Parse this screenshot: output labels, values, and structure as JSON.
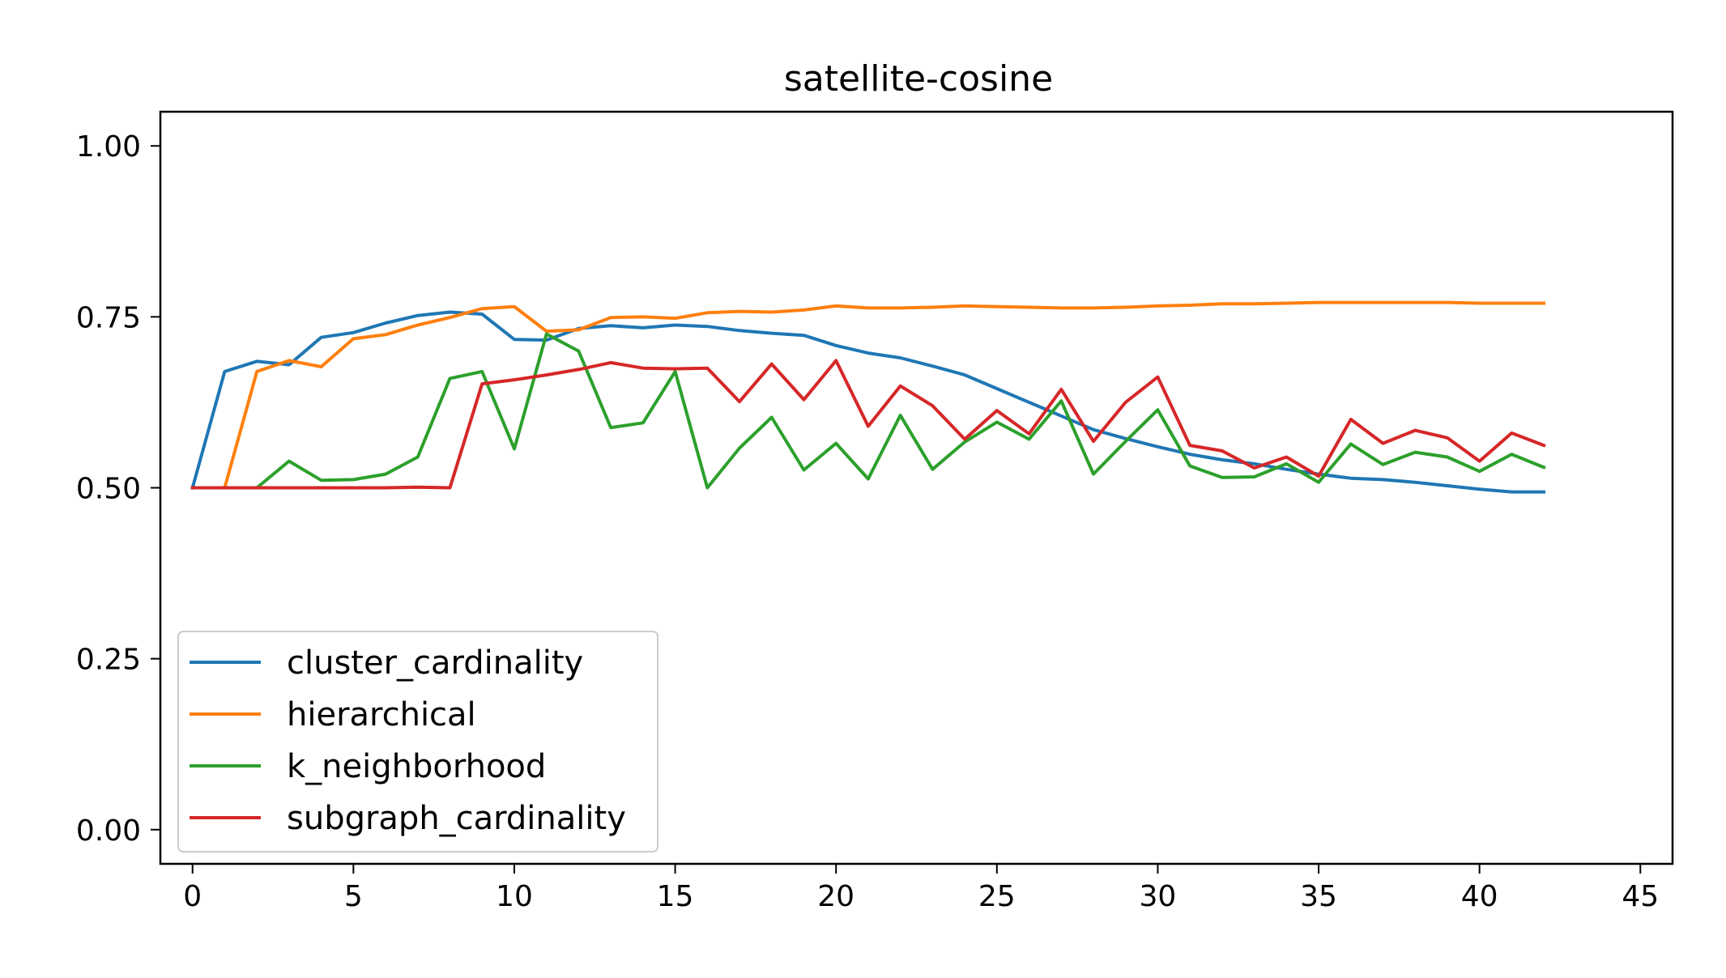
{
  "chart_data": {
    "type": "line",
    "title": "satellite-cosine",
    "xlabel": "",
    "ylabel": "",
    "xlim": [
      -1,
      46
    ],
    "ylim": [
      -0.05,
      1.05
    ],
    "xticks": [
      0,
      5,
      10,
      15,
      20,
      25,
      30,
      35,
      40,
      45
    ],
    "xtick_labels": [
      "0",
      "5",
      "10",
      "15",
      "20",
      "25",
      "30",
      "35",
      "40",
      "45"
    ],
    "yticks": [
      0.0,
      0.25,
      0.5,
      0.75,
      1.0
    ],
    "ytick_labels": [
      "0.00",
      "0.25",
      "0.50",
      "0.75",
      "1.00"
    ],
    "grid": false,
    "legend_position": "lower-left",
    "x": [
      0,
      1,
      2,
      3,
      4,
      5,
      6,
      7,
      8,
      9,
      10,
      11,
      12,
      13,
      14,
      15,
      16,
      17,
      18,
      19,
      20,
      21,
      22,
      23,
      24,
      25,
      26,
      27,
      28,
      29,
      30,
      31,
      32,
      33,
      34,
      35,
      36,
      37,
      38,
      39,
      40,
      41,
      42
    ],
    "series": [
      {
        "name": "cluster_cardinality",
        "color": "#1f77b4",
        "values": [
          0.5,
          0.67,
          0.685,
          0.68,
          0.72,
          0.727,
          0.741,
          0.752,
          0.757,
          0.754,
          0.717,
          0.716,
          0.733,
          0.737,
          0.734,
          0.738,
          0.736,
          0.73,
          0.726,
          0.723,
          0.708,
          0.697,
          0.69,
          0.678,
          0.665,
          0.645,
          0.625,
          0.605,
          0.585,
          0.572,
          0.56,
          0.549,
          0.541,
          0.535,
          0.527,
          0.52,
          0.514,
          0.512,
          0.508,
          0.503,
          0.498,
          0.494,
          0.494
        ]
      },
      {
        "name": "hierarchical",
        "color": "#ff7f0e",
        "values": [
          0.5,
          0.5,
          0.67,
          0.686,
          0.677,
          0.718,
          0.724,
          0.738,
          0.749,
          0.762,
          0.765,
          0.729,
          0.731,
          0.749,
          0.75,
          0.748,
          0.756,
          0.758,
          0.757,
          0.76,
          0.766,
          0.763,
          0.763,
          0.764,
          0.766,
          0.765,
          0.764,
          0.763,
          0.763,
          0.764,
          0.766,
          0.767,
          0.769,
          0.769,
          0.77,
          0.771,
          0.771,
          0.771,
          0.771,
          0.771,
          0.77,
          0.77,
          0.77
        ]
      },
      {
        "name": "k_neighborhood",
        "color": "#2ca02c",
        "values": [
          0.5,
          0.5,
          0.5,
          0.539,
          0.511,
          0.512,
          0.52,
          0.545,
          0.66,
          0.67,
          0.557,
          0.725,
          0.7,
          0.588,
          0.595,
          0.67,
          0.5,
          0.558,
          0.603,
          0.526,
          0.565,
          0.513,
          0.606,
          0.527,
          0.567,
          0.596,
          0.571,
          0.627,
          0.52,
          0.568,
          0.614,
          0.532,
          0.515,
          0.516,
          0.535,
          0.508,
          0.564,
          0.534,
          0.552,
          0.545,
          0.524,
          0.549,
          0.53
        ]
      },
      {
        "name": "subgraph_cardinality",
        "color": "#d62728",
        "values": [
          0.5,
          0.5,
          0.5,
          0.5,
          0.5,
          0.5,
          0.5,
          0.501,
          0.5,
          0.652,
          0.658,
          0.665,
          0.673,
          0.683,
          0.675,
          0.674,
          0.675,
          0.626,
          0.681,
          0.629,
          0.686,
          0.59,
          0.649,
          0.62,
          0.571,
          0.613,
          0.579,
          0.644,
          0.568,
          0.625,
          0.662,
          0.562,
          0.554,
          0.529,
          0.545,
          0.517,
          0.6,
          0.565,
          0.584,
          0.573,
          0.539,
          0.58,
          0.562
        ]
      }
    ]
  }
}
